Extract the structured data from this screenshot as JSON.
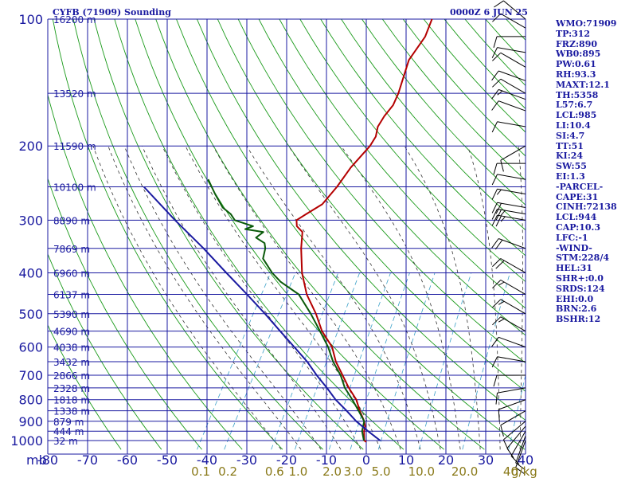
{
  "header": {
    "station": "CYFB (71909) Sounding",
    "time": "0000Z  6 JUN 25"
  },
  "indices": [
    "WMO:71909",
    "TP:312",
    "FRZ:890",
    "WB0:895",
    "PW:0.61",
    "RH:93.3",
    "MAXT:12.1",
    "TH:5358",
    "L57:6.7",
    "LCL:985",
    "LI:10.4",
    "SI:4.7",
    "TT:51",
    "KI:24",
    "SW:55",
    "EI:1.3",
    "-PARCEL-",
    "CAPE:31",
    "CINH:72138",
    "LCL:944",
    "CAP:10.3",
    "LFC:-1",
    "-WIND-",
    "STM:228/4",
    "HEL:31",
    "SHR+:0.0",
    "SRDS:124",
    "EHI:0.0",
    "BRN:2.6",
    "BSHR:12"
  ],
  "colors": {
    "grid": "#1a1aa0",
    "dry_adiabat": "#1a9a1a",
    "moist_adiabat": "#333333",
    "mixing_ratio": "#3aa0c8",
    "temperature": "#b40000",
    "dewpoint": "#0a5a0a",
    "parcel": "#1a1aa0",
    "wind": "#000000"
  },
  "chart_data": {
    "type": "line",
    "chart_kind": "skew-T log-P sounding",
    "title": "CYFB (71909) Sounding",
    "subtitle": "0000Z  6 JUN 25",
    "xlabel": "",
    "ylabel": "mb",
    "xlim": [
      -80,
      40
    ],
    "ylim": [
      1000,
      100
    ],
    "y_scale": "log",
    "grid": true,
    "pressure_ticks": [
      100,
      200,
      300,
      400,
      500,
      600,
      700,
      800,
      900,
      1000
    ],
    "temp_ticks": [
      "-80",
      "-70",
      "-60",
      "-50",
      "-40",
      "-30",
      "-20",
      "-10",
      "0",
      "10",
      "20",
      "30",
      "40"
    ],
    "height_labels": [
      {
        "p": 100,
        "label": "16200 m"
      },
      {
        "p": 150,
        "label": "13520 m"
      },
      {
        "p": 200,
        "label": "11590 m"
      },
      {
        "p": 250,
        "label": "10100 m"
      },
      {
        "p": 300,
        "label": "8890 m"
      },
      {
        "p": 350,
        "label": "7869 m"
      },
      {
        "p": 400,
        "label": "6960 m"
      },
      {
        "p": 450,
        "label": "6137 m"
      },
      {
        "p": 500,
        "label": "5390 m"
      },
      {
        "p": 550,
        "label": "4690 m"
      },
      {
        "p": 600,
        "label": "4038 m"
      },
      {
        "p": 650,
        "label": "3432 m"
      },
      {
        "p": 700,
        "label": "2866 m"
      },
      {
        "p": 750,
        "label": "2328 m"
      },
      {
        "p": 800,
        "label": "1818 m"
      },
      {
        "p": 850,
        "label": "1338 m"
      },
      {
        "p": 900,
        "label": "879 m"
      },
      {
        "p": 950,
        "label": "444 m"
      },
      {
        "p": 1000,
        "label": "32 m"
      }
    ],
    "mixing_ratio_labels": [
      "0.1",
      "0.2",
      "0.6",
      "1.0",
      "2.0",
      "3.0",
      "5.0",
      "10.0",
      "20.0",
      "40"
    ],
    "mixing_ratio_unit": "g/kg",
    "series": [
      {
        "kind": "temperature",
        "p": [
          1007,
          1000,
          950,
          925,
          900,
          850,
          800,
          750,
          700,
          650,
          600,
          550,
          500,
          450,
          400,
          350,
          320,
          310,
          305,
          300,
          290,
          275,
          250,
          225,
          200,
          190,
          180,
          170,
          160,
          150,
          125,
          110,
          100
        ],
        "t": [
          0.2,
          -0.5,
          -2.0,
          -2.5,
          -3.5,
          -6.2,
          -8.8,
          -12.5,
          -16.0,
          -19.8,
          -23.0,
          -28.0,
          -32.2,
          -37.5,
          -42.0,
          -46.0,
          -48.2,
          -50.5,
          -51.0,
          -51.5,
          -50.0,
          -47.5,
          -46.5,
          -46.0,
          -44.5,
          -44.5,
          -45.5,
          -45.5,
          -45.0,
          -45.5,
          -48.0,
          -47.5,
          -48.5
        ]
      },
      {
        "kind": "dewpoint",
        "p": [
          1000,
          950,
          925,
          900,
          850,
          800,
          750,
          700,
          650,
          600,
          550,
          500,
          450,
          420,
          400,
          370,
          350,
          340,
          330,
          320,
          315,
          310,
          300,
          290,
          280,
          260,
          240
        ],
        "t": [
          -0.6,
          -2.5,
          -3.0,
          -3.5,
          -6.5,
          -9.8,
          -13.5,
          -16.5,
          -20.5,
          -24.0,
          -28.5,
          -33.5,
          -39.5,
          -46.0,
          -49.5,
          -54.0,
          -55.0,
          -56.0,
          -59.0,
          -58.0,
          -63.0,
          -61.5,
          -67.0,
          -69.0,
          -72.0,
          -76.0,
          -80.0
        ]
      },
      {
        "kind": "parcel",
        "p": [
          1000,
          950,
          900,
          850,
          800,
          750,
          700,
          650,
          600,
          550,
          500,
          450,
          400,
          350,
          300,
          250
        ],
        "t": [
          3.5,
          -1.0,
          -5.5,
          -9.5,
          -14.0,
          -18.0,
          -22.5,
          -27.0,
          -32.5,
          -38.5,
          -45.0,
          -52.5,
          -61.0,
          -70.5,
          -82.0,
          -95.0
        ]
      }
    ],
    "wind_barbs": [
      {
        "p": 1000,
        "dir": 200,
        "kt": 10
      },
      {
        "p": 975,
        "dir": 200,
        "kt": 10
      },
      {
        "p": 950,
        "dir": 210,
        "kt": 10
      },
      {
        "p": 925,
        "dir": 220,
        "kt": 10
      },
      {
        "p": 900,
        "dir": 230,
        "kt": 10
      },
      {
        "p": 850,
        "dir": 240,
        "kt": 10
      },
      {
        "p": 800,
        "dir": 250,
        "kt": 10
      },
      {
        "p": 750,
        "dir": 260,
        "kt": 10
      },
      {
        "p": 700,
        "dir": 270,
        "kt": 10
      },
      {
        "p": 650,
        "dir": 280,
        "kt": 10
      },
      {
        "p": 600,
        "dir": 290,
        "kt": 10
      },
      {
        "p": 550,
        "dir": 300,
        "kt": 15
      },
      {
        "p": 500,
        "dir": 300,
        "kt": 15
      },
      {
        "p": 450,
        "dir": 300,
        "kt": 15
      },
      {
        "p": 400,
        "dir": 300,
        "kt": 20
      },
      {
        "p": 350,
        "dir": 290,
        "kt": 20
      },
      {
        "p": 300,
        "dir": 280,
        "kt": 25
      },
      {
        "p": 290,
        "dir": 280,
        "kt": 25
      },
      {
        "p": 280,
        "dir": 280,
        "kt": 20
      },
      {
        "p": 260,
        "dir": 280,
        "kt": 15
      },
      {
        "p": 240,
        "dir": 280,
        "kt": 10
      },
      {
        "p": 220,
        "dir": 270,
        "kt": 10
      },
      {
        "p": 200,
        "dir": 240,
        "kt": 10
      },
      {
        "p": 180,
        "dir": 280,
        "kt": 10
      },
      {
        "p": 165,
        "dir": 290,
        "kt": 10
      },
      {
        "p": 155,
        "dir": 290,
        "kt": 15
      },
      {
        "p": 150,
        "dir": 300,
        "kt": 10
      },
      {
        "p": 140,
        "dir": 290,
        "kt": 10
      },
      {
        "p": 130,
        "dir": 300,
        "kt": 10
      },
      {
        "p": 120,
        "dir": 280,
        "kt": 10
      },
      {
        "p": 110,
        "dir": 270,
        "kt": 10
      },
      {
        "p": 105,
        "dir": 300,
        "kt": 10
      },
      {
        "p": 100,
        "dir": 310,
        "kt": 10
      }
    ]
  }
}
